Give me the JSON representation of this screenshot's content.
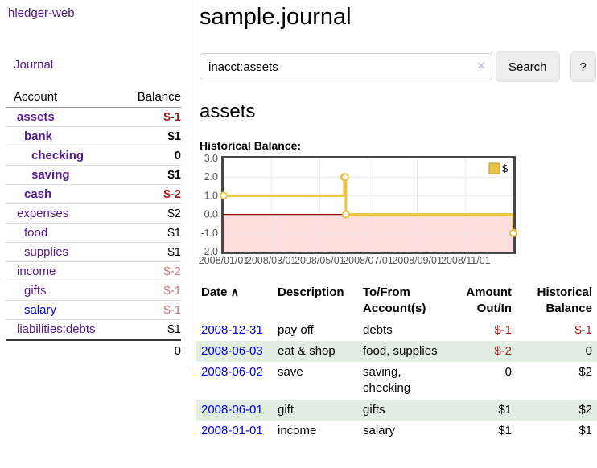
{
  "colors": {
    "purple": "#551a8b",
    "blue": "#0000e8",
    "neg-strong": "#9e1a1c",
    "neg-soft": "#c4767a",
    "stripe": "#e2eee2",
    "chart-line": "#edc240",
    "chart-neg": "#ffdddd",
    "chart-zero": "#8b0000",
    "chart-border": "#474747",
    "chart-tick": "#545454",
    "input-border": "#cccccc",
    "btn-bg": "#ededed",
    "btn-border": "#e2e2e2",
    "clear-x": "#cfc2e4"
  },
  "brand": {
    "label": "hledger-web"
  },
  "nav": {
    "journal": "Journal"
  },
  "sidebar": {
    "col_account": "Account",
    "col_balance": "Balance",
    "rows": [
      {
        "label": "assets",
        "balance": "$-1",
        "acct_class": "d1 bold purple",
        "bal_class": "bold neg-strong"
      },
      {
        "label": "bank",
        "balance": "$1",
        "acct_class": "d2 bold purple",
        "bal_class": "bold"
      },
      {
        "label": "checking",
        "balance": "0",
        "acct_class": "d3 bold purple",
        "bal_class": "bold"
      },
      {
        "label": "saving",
        "balance": "$1",
        "acct_class": "d3 bold purple",
        "bal_class": "bold"
      },
      {
        "label": "cash",
        "balance": "$-2",
        "acct_class": "d2 bold purple",
        "bal_class": "bold neg-strong"
      },
      {
        "label": "expenses",
        "balance": "$2",
        "acct_class": "d1 purple",
        "bal_class": ""
      },
      {
        "label": "food",
        "balance": "$1",
        "acct_class": "d2 purple",
        "bal_class": ""
      },
      {
        "label": "supplies",
        "balance": "$1",
        "acct_class": "d2 purple",
        "bal_class": ""
      },
      {
        "label": "income",
        "balance": "$-2",
        "acct_class": "d1 purple",
        "bal_class": "neg-soft"
      },
      {
        "label": "gifts",
        "balance": "$-1",
        "acct_class": "d2 purple",
        "bal_class": "neg-soft"
      },
      {
        "label": "salary",
        "balance": "$-1",
        "acct_class": "d2 blue",
        "bal_class": "neg-soft"
      },
      {
        "label": "liabilities:debts",
        "balance": "$1",
        "acct_class": "d1 purple",
        "bal_class": ""
      }
    ],
    "total": "0"
  },
  "main": {
    "title": "sample.journal",
    "search": {
      "value": "inacct:assets",
      "clear": "×",
      "button": "Search",
      "help": "?"
    },
    "heading": "assets",
    "chart_title": "Historical Balance:"
  },
  "chart_data": {
    "type": "line",
    "subtype": "step-after",
    "title": "Historical Balance:",
    "x_type": "date",
    "xlim": [
      "2008-01-01",
      "2008-12-31"
    ],
    "ylim": [
      -2,
      3
    ],
    "y_ticks": [
      3,
      2,
      1,
      0,
      -1,
      -2
    ],
    "x_ticks": [
      {
        "date": "2008-01-01",
        "label": "2008/01/01"
      },
      {
        "date": "2008-03-01",
        "label": "2008/03/01"
      },
      {
        "date": "2008-05-01",
        "label": "2008/05/01"
      },
      {
        "date": "2008-07-01",
        "label": "2008/07/01"
      },
      {
        "date": "2008-09-01",
        "label": "2008/09/01"
      },
      {
        "date": "2008-11-01",
        "label": "2008/11/01"
      }
    ],
    "series": [
      {
        "name": "$",
        "color": "#edc240",
        "points": [
          [
            "2008-01-01",
            1
          ],
          [
            "2008-06-01",
            2
          ],
          [
            "2008-06-02",
            2
          ],
          [
            "2008-06-03",
            0
          ],
          [
            "2008-12-31",
            -1
          ]
        ]
      }
    ],
    "legend": {
      "position": "top-right",
      "label": "$"
    },
    "grid": true,
    "negative_fill": "#ffdddd",
    "zero_line": "#8b0000"
  },
  "register": {
    "headers": {
      "date": "Date",
      "sort_icon": "∧",
      "description": "Description",
      "accounts": "To/From Account(s)",
      "amount": "Amount Out/In",
      "balance": "Historical Balance"
    },
    "rows": [
      {
        "date": "2008-12-31",
        "description": "pay off",
        "accounts": "debts",
        "amount": "$-1",
        "balance": "$-1",
        "amount_class": "neg",
        "balance_class": "neg"
      },
      {
        "date": "2008-06-03",
        "description": "eat & shop",
        "accounts": "food, supplies",
        "amount": "$-2",
        "balance": "0",
        "amount_class": "neg",
        "balance_class": ""
      },
      {
        "date": "2008-06-02",
        "description": "save",
        "accounts": "saving, checking",
        "amount": "0",
        "balance": "$2",
        "amount_class": "",
        "balance_class": ""
      },
      {
        "date": "2008-06-01",
        "description": "gift",
        "accounts": "gifts",
        "amount": "$1",
        "balance": "$2",
        "amount_class": "",
        "balance_class": ""
      },
      {
        "date": "2008-01-01",
        "description": "income",
        "accounts": "salary",
        "amount": "$1",
        "balance": "$1",
        "amount_class": "",
        "balance_class": ""
      }
    ]
  }
}
